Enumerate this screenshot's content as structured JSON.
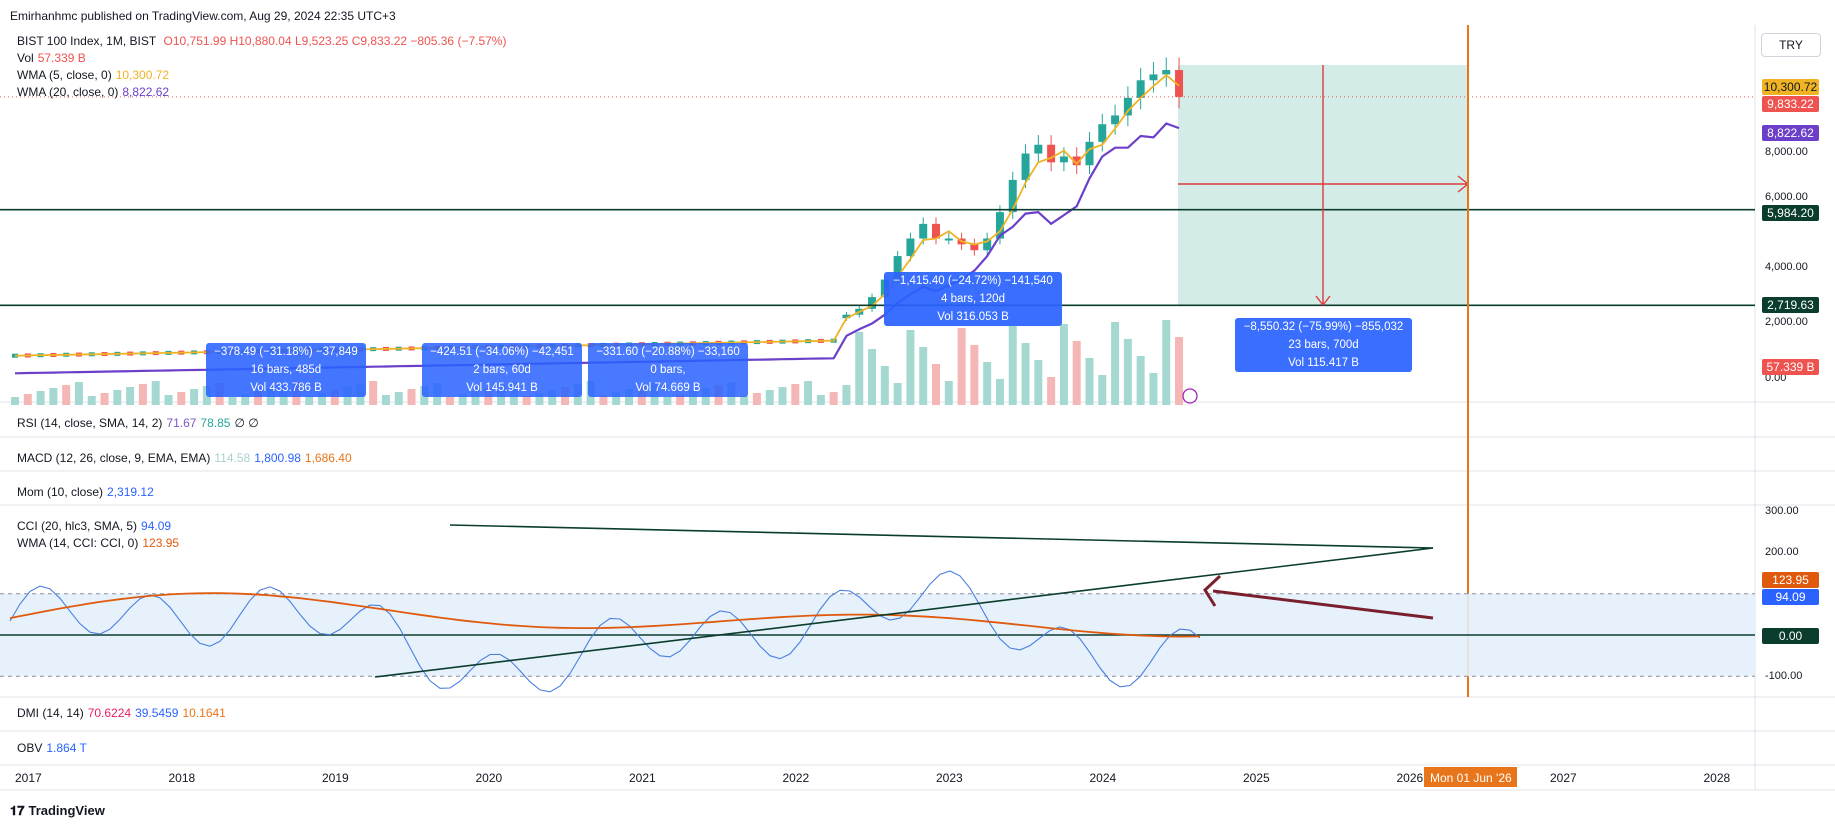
{
  "header": {
    "publisher": "Emirhanhmc published on TradingView.com, Aug 29, 2024 22:35 UTC+3",
    "currency": "TRY",
    "brand": "TradingView"
  },
  "legend": {
    "symbol": "BIST 100 Index, 1M, BIST",
    "ohlc": "O10,751.99 H10,880.04 L9,523.25 C9,833.22 −805.36 (−7.57%)",
    "vol_name": "Vol",
    "vol_value": "57.339 B",
    "wma5_name": "WMA (5, close, 0)",
    "wma5_value": "10,300.72",
    "wma20_name": "WMA (20, close, 0)",
    "wma20_value": "8,822.62",
    "rsi_name": "RSI (14, close, SMA, 14, 2)",
    "rsi_v1": "71.67",
    "rsi_v2": "78.85",
    "rsi_v3": "∅ ∅",
    "macd_name": "MACD (12, 26, close, 9, EMA, EMA)",
    "macd_v1": "114.58",
    "macd_v2": "1,800.98",
    "macd_v3": "1,686.40",
    "mom_name": "Mom (10, close)",
    "mom_value": "2,319.12",
    "cci_name": "CCI (20, hlc3, SMA, 5)",
    "cci_value": "94.09",
    "ccima_name": "WMA (14, CCI: CCI, 0)",
    "ccima_value": "123.95",
    "dmi_name": "DMI (14, 14)",
    "dmi_v1": "70.6224",
    "dmi_v2": "39.5459",
    "dmi_v3": "10.1641",
    "obv_name": "OBV",
    "obv_value": "1.864 T"
  },
  "price_labels": {
    "wma5": "10,300.72",
    "close": "9,833.22",
    "wma20": "8,822.62",
    "level_high": "5,984.20",
    "level_low": "2,719.63",
    "volume": "57.339 B",
    "cci_ma": "123.95",
    "cci": "94.09",
    "cci_zero": "0.00"
  },
  "measure_boxes": [
    {
      "line1": "−378.49 (−31.18%) −37,849",
      "line2": "16 bars, 485d",
      "line3": "Vol 433.786 B"
    },
    {
      "line1": "−424.51 (−34.06%) −42,451",
      "line2": "2 bars, 60d",
      "line3": "Vol 145.941 B"
    },
    {
      "line1": "−331.60 (−20.88%) −33,160",
      "line2": "0 bars,",
      "line3": "Vol 74.669 B"
    },
    {
      "line1": "−1,415.40 (−24.72%) −141,540",
      "line2": "4 bars, 120d",
      "line3": "Vol 316.053 B"
    },
    {
      "line1": "−8,550.32 (−75.99%) −855,032",
      "line2": "23 bars, 700d",
      "line3": "Vol 115.417 B"
    }
  ],
  "cursor_date": "Mon 01 Jun '26",
  "colors": {
    "up": "#26a69a",
    "down": "#ef5350",
    "wma5": "#f0b323",
    "wma20": "#6b3fc9",
    "level": "#0b3d2e",
    "measure": "#2962ff",
    "cursor": "#e8751a",
    "cci": "#4a7fe0",
    "cci_ma": "#e05a0e",
    "projection_fill": "#cde9e3",
    "projection_line": "#e0383e",
    "arrow": "#7a1f2e"
  },
  "chart_data": [
    {
      "type": "candlestick",
      "title": "BIST 100 Index, 1M, BIST",
      "x_axis_ticks": [
        "2017",
        "2018",
        "2019",
        "2020",
        "2021",
        "2022",
        "2023",
        "2024",
        "2025",
        "2026",
        "2027",
        "2028"
      ],
      "y_axis_ticks": [
        "8,000.00",
        "6,000.00",
        "4,000.00",
        "2,000.00",
        "0.00"
      ],
      "horizontal_levels": [
        5984.2,
        2719.63
      ],
      "last_ohlc": {
        "open": 10751.99,
        "high": 10880.04,
        "low": 9523.25,
        "close": 9833.22
      },
      "series": [
        {
          "name": "WMA (5, close, 0)",
          "last": 10300.72
        },
        {
          "name": "WMA (20, close, 0)",
          "last": 8822.62
        },
        {
          "name": "Vol",
          "last": "57.339 B"
        }
      ],
      "approx_monthly_close": [
        {
          "date": "2022-06",
          "close": 2400
        },
        {
          "date": "2022-07",
          "close": 2600
        },
        {
          "date": "2022-08",
          "close": 3000
        },
        {
          "date": "2022-09",
          "close": 3600
        },
        {
          "date": "2022-10",
          "close": 4400
        },
        {
          "date": "2022-11",
          "close": 5000
        },
        {
          "date": "2022-12",
          "close": 5500
        },
        {
          "date": "2023-01",
          "close": 5000
        },
        {
          "date": "2023-02",
          "close": 5000
        },
        {
          "date": "2023-03",
          "close": 4800
        },
        {
          "date": "2023-04",
          "close": 4600
        },
        {
          "date": "2023-05",
          "close": 5000
        },
        {
          "date": "2023-06",
          "close": 5900
        },
        {
          "date": "2023-07",
          "close": 7000
        },
        {
          "date": "2023-08",
          "close": 7900
        },
        {
          "date": "2023-09",
          "close": 8200
        },
        {
          "date": "2023-10",
          "close": 7600
        },
        {
          "date": "2023-11",
          "close": 7800
        },
        {
          "date": "2023-12",
          "close": 7500
        },
        {
          "date": "2024-01",
          "close": 8300
        },
        {
          "date": "2024-02",
          "close": 8900
        },
        {
          "date": "2024-03",
          "close": 9200
        },
        {
          "date": "2024-04",
          "close": 9800
        },
        {
          "date": "2024-05",
          "close": 10400
        },
        {
          "date": "2024-06",
          "close": 10600
        },
        {
          "date": "2024-07",
          "close": 10750
        },
        {
          "date": "2024-08",
          "close": 9833.22
        }
      ]
    },
    {
      "type": "line",
      "title": "CCI (20, hlc3, SMA, 5)",
      "y_axis_ticks": [
        "300.00",
        "200.00",
        "-100.00"
      ],
      "levels": [
        100,
        0,
        -100
      ],
      "series": [
        {
          "name": "CCI (20, hlc3, SMA, 5)",
          "last": 94.09
        },
        {
          "name": "WMA (14, CCI: CCI, 0)",
          "last": 123.95
        }
      ]
    }
  ]
}
